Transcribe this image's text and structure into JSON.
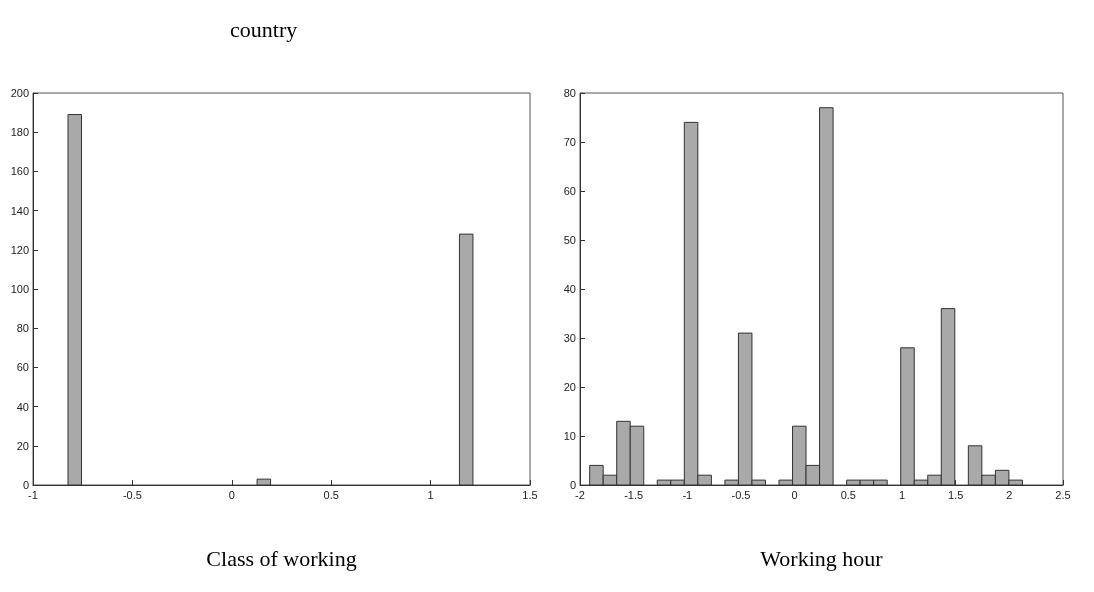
{
  "chart_data": [
    {
      "type": "histogram",
      "xlabel": "Class of working",
      "annotations": [
        "country"
      ],
      "color": "#a9a9a9",
      "bins": [
        -0.824,
        -0.756,
        -0.688,
        -0.62,
        -0.552,
        -0.485,
        -0.417,
        -0.349,
        -0.281,
        -0.213,
        -0.145,
        -0.077,
        -0.009,
        0.059,
        0.127,
        0.195,
        0.262,
        0.33,
        0.398,
        0.466,
        0.534,
        0.602,
        0.67,
        0.738,
        0.806,
        0.874,
        0.941,
        1.009,
        1.077,
        1.145,
        1.213
      ],
      "values": [
        189,
        0,
        0,
        0,
        0,
        0,
        0,
        0,
        0,
        0,
        0,
        0,
        0,
        0,
        3,
        0,
        0,
        0,
        0,
        0,
        0,
        0,
        0,
        0,
        0,
        0,
        0,
        0,
        0,
        128
      ],
      "xlim": [
        -1,
        1.5
      ],
      "xticks": [
        -1,
        -0.5,
        0,
        0.5,
        1,
        1.5
      ],
      "ylim": [
        0,
        200
      ],
      "yticks": [
        0,
        20,
        40,
        60,
        80,
        100,
        120,
        140,
        160,
        180,
        200
      ],
      "grid": false
    },
    {
      "type": "histogram",
      "xlabel": "Working hour",
      "color": "#a9a9a9",
      "bins": [
        -1.91,
        -1.784,
        -1.658,
        -1.532,
        -1.406,
        -1.28,
        -1.154,
        -1.028,
        -0.902,
        -0.776,
        -0.65,
        -0.524,
        -0.398,
        -0.272,
        -0.146,
        -0.02,
        0.106,
        0.232,
        0.358,
        0.484,
        0.61,
        0.736,
        0.862,
        0.988,
        1.114,
        1.24,
        1.366,
        1.492,
        1.618,
        1.744,
        1.87,
        1.996,
        2.122
      ],
      "values": [
        4,
        2,
        13,
        12,
        0,
        1,
        1,
        74,
        2,
        0,
        1,
        31,
        1,
        0,
        1,
        12,
        4,
        77,
        0,
        1,
        1,
        1,
        0,
        28,
        1,
        2,
        36,
        0,
        8,
        2,
        3,
        1
      ],
      "xlim": [
        -2,
        2.5
      ],
      "xticks": [
        -2,
        -1.5,
        -1,
        -0.5,
        0,
        0.5,
        1,
        1.5,
        2,
        2.5
      ],
      "ylim": [
        0,
        80
      ],
      "yticks": [
        0,
        10,
        20,
        30,
        40,
        50,
        60,
        70,
        80
      ],
      "grid": false
    }
  ]
}
